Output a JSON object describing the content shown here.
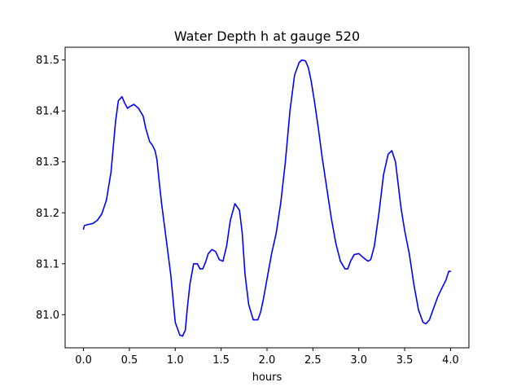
{
  "chart_data": {
    "type": "line",
    "title": "Water Depth h at gauge 520",
    "xlabel": "hours",
    "ylabel": "",
    "xlim": [
      -0.2,
      4.2
    ],
    "ylim": [
      80.935,
      81.525
    ],
    "xticks": [
      0.0,
      0.5,
      1.0,
      1.5,
      2.0,
      2.5,
      3.0,
      3.5,
      4.0
    ],
    "xtick_labels": [
      "0.0",
      "0.5",
      "1.0",
      "1.5",
      "2.0",
      "2.5",
      "3.0",
      "3.5",
      "4.0"
    ],
    "yticks": [
      81.0,
      81.1,
      81.2,
      81.3,
      81.4,
      81.5
    ],
    "ytick_labels": [
      "81.0",
      "81.1",
      "81.2",
      "81.3",
      "81.4",
      "81.5"
    ],
    "grid": false,
    "legend": "none",
    "series": [
      {
        "color": "#0000ff",
        "x": [
          0.0,
          0.01,
          0.05,
          0.1,
          0.15,
          0.2,
          0.25,
          0.3,
          0.35,
          0.38,
          0.42,
          0.45,
          0.48,
          0.5,
          0.55,
          0.6,
          0.65,
          0.68,
          0.72,
          0.75,
          0.78,
          0.8,
          0.82,
          0.85,
          0.9,
          0.95,
          1.0,
          1.05,
          1.08,
          1.11,
          1.13,
          1.16,
          1.2,
          1.24,
          1.27,
          1.3,
          1.33,
          1.36,
          1.4,
          1.44,
          1.48,
          1.52,
          1.56,
          1.6,
          1.65,
          1.7,
          1.73,
          1.76,
          1.8,
          1.85,
          1.9,
          1.93,
          1.96,
          2.0,
          2.05,
          2.1,
          2.15,
          2.2,
          2.25,
          2.3,
          2.35,
          2.38,
          2.42,
          2.45,
          2.48,
          2.52,
          2.56,
          2.6,
          2.65,
          2.7,
          2.75,
          2.8,
          2.85,
          2.88,
          2.91,
          2.95,
          3.0,
          3.05,
          3.1,
          3.13,
          3.17,
          3.22,
          3.27,
          3.32,
          3.36,
          3.4,
          3.43,
          3.46,
          3.5,
          3.55,
          3.6,
          3.65,
          3.7,
          3.73,
          3.77,
          3.8,
          3.83,
          3.86,
          3.9,
          3.95,
          3.98,
          4.0
        ],
        "y": [
          81.168,
          81.175,
          81.177,
          81.179,
          81.185,
          81.198,
          81.225,
          81.28,
          81.38,
          81.42,
          81.428,
          81.415,
          81.405,
          81.408,
          81.413,
          81.405,
          81.39,
          81.365,
          81.34,
          81.333,
          81.322,
          81.305,
          81.27,
          81.22,
          81.15,
          81.08,
          80.985,
          80.96,
          80.958,
          80.97,
          81.01,
          81.06,
          81.1,
          81.1,
          81.09,
          81.09,
          81.103,
          81.12,
          81.128,
          81.124,
          81.108,
          81.105,
          81.135,
          81.185,
          81.218,
          81.205,
          81.16,
          81.08,
          81.02,
          80.99,
          80.99,
          81.005,
          81.03,
          81.07,
          81.12,
          81.16,
          81.22,
          81.3,
          81.4,
          81.47,
          81.495,
          81.5,
          81.498,
          81.485,
          81.46,
          81.415,
          81.365,
          81.31,
          81.25,
          81.19,
          81.14,
          81.105,
          81.09,
          81.09,
          81.105,
          81.118,
          81.12,
          81.112,
          81.105,
          81.108,
          81.135,
          81.2,
          81.275,
          81.315,
          81.322,
          81.3,
          81.255,
          81.21,
          81.165,
          81.12,
          81.06,
          81.01,
          80.985,
          80.982,
          80.99,
          81.005,
          81.02,
          81.035,
          81.05,
          81.068,
          81.085,
          81.085
        ]
      }
    ]
  }
}
